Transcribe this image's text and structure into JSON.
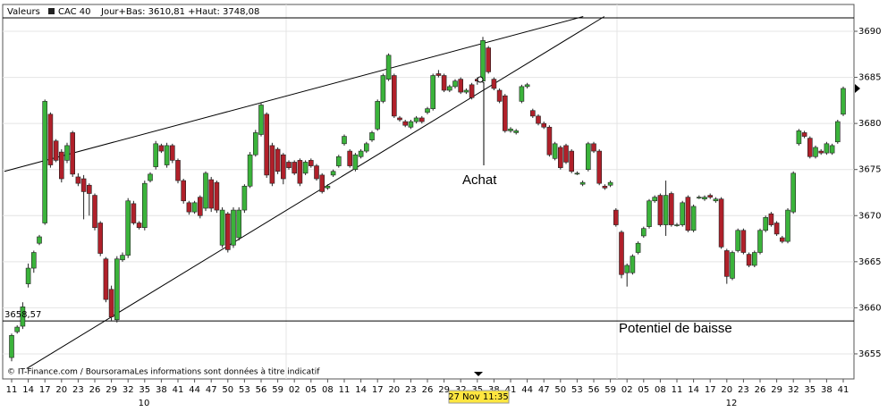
{
  "chart_data": {
    "type": "candlestick",
    "header": [
      "Valeurs",
      "Jour+Bas: 3610,81 +Haut: 3748,08"
    ],
    "up_color": "#3bb33b",
    "down_color": "#b0202a",
    "series": [
      {
        "name": "CAC 40",
        "open": [
          3654.6,
          3657.4,
          3658.0,
          3662.6,
          3664.3,
          3667.0,
          3669.2,
          3681.0,
          3678.1,
          3676.9,
          3676.0,
          3679.0,
          3674.2,
          3674.0,
          3673.3,
          3672.2,
          3669.2,
          3665.3,
          3662.0,
          3658.7,
          3665.2,
          3665.7,
          3671.3,
          3669.2,
          3668.7,
          3673.8,
          3675.3,
          3677.6,
          3675.5,
          3677.6,
          3676.0,
          3673.8,
          3671.4,
          3670.4,
          3672.0,
          3670.8,
          3673.9,
          3673.6,
          3666.8,
          3670.2,
          3666.8,
          3667.6,
          3670.6,
          3673.2,
          3676.6,
          3678.8,
          3681.0,
          3677.6,
          3677.2,
          3676.6,
          3675.8,
          3675.8,
          3676.0,
          3674.6,
          3676.0,
          3675.4,
          3674.4,
          3673.0,
          3674.4,
          3675.4,
          3677.8,
          3677.0,
          3675.0,
          3676.4,
          3677.0,
          3678.2,
          3679.4,
          3682.4,
          3684.8,
          3685.2,
          3680.6,
          3680.2,
          3679.6,
          3680.2,
          3680.6,
          3681.2,
          3681.6,
          3685.4,
          3685.2,
          3683.6,
          3684.0,
          3684.8,
          3683.4,
          3684.2,
          3684.8,
          3684.6,
          3688.2,
          3684.8,
          3683.6,
          3683.0,
          3679.2,
          3679.0,
          3682.4,
          3684.0,
          3681.4,
          3680.8,
          3680.0,
          3679.6,
          3676.2,
          3677.4,
          3677.6,
          3677.0,
          3674.6,
          3673.4,
          3675.0,
          3677.8,
          3677.0,
          3673.2,
          3673.3,
          3670.6,
          3668.2,
          3663.8,
          3663.8,
          3666.0,
          3667.8,
          3668.8,
          3671.6,
          3672.2,
          3669.0,
          3672.4,
          3669.0,
          3669.0,
          3672.0,
          3668.4,
          3672.0,
          3671.8,
          3672.2,
          3671.6,
          3671.8,
          3666.2,
          3663.2,
          3666.2,
          3668.4,
          3665.8,
          3664.6,
          3666.0,
          3668.4,
          3670.2,
          3669.2,
          3667.6,
          3667.2,
          3670.4,
          3677.8,
          3679.0,
          3678.4,
          3676.4,
          3677.0,
          3676.8,
          3676.8,
          3678.0,
          3681.0
        ],
        "high": [
          3657.2,
          3658.1,
          3660.6,
          3664.8,
          3666.2,
          3667.9,
          3682.6,
          3681.2,
          3678.3,
          3677.2,
          3677.9,
          3679.2,
          3674.6,
          3674.4,
          3673.5,
          3672.4,
          3669.4,
          3665.5,
          3662.4,
          3665.6,
          3666.0,
          3671.9,
          3671.6,
          3669.4,
          3673.8,
          3674.7,
          3678.1,
          3677.8,
          3677.9,
          3677.8,
          3676.2,
          3674.0,
          3671.6,
          3671.6,
          3672.2,
          3674.8,
          3674.2,
          3673.8,
          3670.9,
          3670.4,
          3670.9,
          3670.9,
          3673.4,
          3676.9,
          3679.3,
          3682.3,
          3681.2,
          3677.9,
          3677.4,
          3676.8,
          3676.0,
          3676.0,
          3676.2,
          3676.0,
          3676.2,
          3675.6,
          3674.6,
          3673.4,
          3675.0,
          3676.6,
          3678.8,
          3677.2,
          3676.8,
          3677.2,
          3678.0,
          3679.2,
          3682.6,
          3685.4,
          3687.6,
          3685.4,
          3680.8,
          3680.4,
          3680.4,
          3680.8,
          3680.8,
          3681.8,
          3685.4,
          3685.8,
          3685.4,
          3684.2,
          3684.8,
          3685.0,
          3683.8,
          3684.4,
          3685.0,
          3689.4,
          3688.4,
          3685.0,
          3683.8,
          3683.2,
          3679.6,
          3679.4,
          3684.2,
          3684.4,
          3681.6,
          3681.0,
          3680.2,
          3679.8,
          3678.0,
          3677.6,
          3677.8,
          3677.2,
          3674.8,
          3673.8,
          3678.0,
          3678.0,
          3677.2,
          3673.4,
          3673.8,
          3670.8,
          3668.4,
          3664.8,
          3665.8,
          3667.2,
          3668.8,
          3671.8,
          3672.2,
          3672.4,
          3673.8,
          3672.6,
          3669.2,
          3671.6,
          3672.2,
          3671.2,
          3672.2,
          3672.2,
          3672.4,
          3672.0,
          3672.0,
          3666.4,
          3666.2,
          3668.6,
          3668.6,
          3666.0,
          3666.2,
          3668.6,
          3670.0,
          3670.4,
          3669.4,
          3667.8,
          3670.8,
          3674.8,
          3679.4,
          3679.2,
          3678.6,
          3677.6,
          3677.2,
          3678.0,
          3677.8,
          3680.4,
          3684.0
        ],
        "low": [
          3654.2,
          3657.2,
          3657.7,
          3662.2,
          3663.8,
          3666.8,
          3669.0,
          3675.2,
          3675.8,
          3673.6,
          3675.7,
          3674.2,
          3673.2,
          3669.6,
          3670.0,
          3668.4,
          3665.6,
          3660.6,
          3658.6,
          3658.4,
          3665.0,
          3665.4,
          3669.0,
          3668.5,
          3668.4,
          3673.6,
          3675.0,
          3676.8,
          3675.2,
          3675.7,
          3673.5,
          3671.3,
          3670.1,
          3670.2,
          3669.7,
          3670.5,
          3670.4,
          3670.3,
          3666.5,
          3666.0,
          3666.5,
          3667.3,
          3670.3,
          3673.0,
          3676.4,
          3678.6,
          3674.1,
          3673.2,
          3674.5,
          3673.4,
          3675.0,
          3674.4,
          3673.2,
          3674.4,
          3675.2,
          3673.8,
          3672.4,
          3672.8,
          3674.2,
          3675.2,
          3677.6,
          3675.2,
          3674.8,
          3676.2,
          3676.8,
          3678.0,
          3679.2,
          3682.2,
          3684.6,
          3680.6,
          3680.2,
          3679.6,
          3679.4,
          3680.0,
          3680.0,
          3681.0,
          3681.4,
          3685.0,
          3683.4,
          3683.4,
          3683.8,
          3683.2,
          3683.2,
          3682.6,
          3684.2,
          3684.4,
          3685.4,
          3683.6,
          3682.2,
          3679.0,
          3679.0,
          3678.8,
          3682.2,
          3683.8,
          3680.6,
          3679.8,
          3679.4,
          3676.4,
          3676.0,
          3675.0,
          3675.6,
          3674.6,
          3674.4,
          3673.2,
          3674.8,
          3676.8,
          3673.3,
          3672.8,
          3673.1,
          3668.8,
          3663.2,
          3662.3,
          3663.6,
          3665.8,
          3667.6,
          3668.6,
          3671.4,
          3668.8,
          3667.8,
          3668.8,
          3668.8,
          3668.8,
          3668.2,
          3668.2,
          3671.8,
          3671.6,
          3671.8,
          3671.4,
          3666.4,
          3662.6,
          3663.0,
          3666.0,
          3665.8,
          3664.4,
          3664.4,
          3665.8,
          3668.2,
          3668.8,
          3667.8,
          3667.0,
          3667.0,
          3670.2,
          3677.6,
          3678.4,
          3676.2,
          3676.2,
          3676.6,
          3676.6,
          3676.6,
          3677.8,
          3680.8
        ],
        "close": [
          3657.0,
          3657.9,
          3660.1,
          3664.3,
          3666.0,
          3667.7,
          3682.4,
          3675.5,
          3676.0,
          3674.0,
          3677.6,
          3674.5,
          3673.5,
          3672.6,
          3672.4,
          3668.7,
          3665.9,
          3660.9,
          3659.0,
          3665.3,
          3665.7,
          3671.6,
          3669.2,
          3668.7,
          3673.5,
          3674.5,
          3677.8,
          3677.0,
          3677.6,
          3676.0,
          3673.8,
          3671.6,
          3670.4,
          3671.4,
          3670.0,
          3674.6,
          3670.8,
          3670.6,
          3670.6,
          3666.3,
          3670.6,
          3670.6,
          3673.2,
          3676.6,
          3679.0,
          3682.0,
          3674.4,
          3673.5,
          3674.8,
          3674.0,
          3675.2,
          3674.6,
          3673.5,
          3675.8,
          3675.4,
          3674.0,
          3672.6,
          3673.2,
          3674.8,
          3676.4,
          3678.6,
          3675.4,
          3676.6,
          3677.0,
          3677.8,
          3679.0,
          3682.4,
          3685.2,
          3687.4,
          3680.8,
          3680.4,
          3679.8,
          3680.2,
          3680.6,
          3680.2,
          3681.6,
          3685.2,
          3685.2,
          3683.6,
          3684.0,
          3684.6,
          3683.4,
          3683.6,
          3682.8,
          3684.6,
          3689.0,
          3685.6,
          3683.8,
          3682.4,
          3679.2,
          3679.4,
          3679.2,
          3684.0,
          3684.2,
          3680.8,
          3680.0,
          3679.6,
          3676.6,
          3677.8,
          3675.2,
          3675.8,
          3674.8,
          3674.6,
          3673.6,
          3677.8,
          3677.0,
          3673.5,
          3673.0,
          3673.6,
          3669.0,
          3663.6,
          3664.6,
          3665.6,
          3667.0,
          3668.6,
          3671.6,
          3672.0,
          3669.0,
          3672.2,
          3669.0,
          3669.0,
          3671.4,
          3668.4,
          3671.0,
          3672.0,
          3672.0,
          3672.0,
          3671.8,
          3666.6,
          3663.4,
          3666.0,
          3668.4,
          3666.0,
          3664.6,
          3666.0,
          3668.4,
          3669.8,
          3669.0,
          3668.0,
          3667.2,
          3670.6,
          3674.6,
          3679.2,
          3678.6,
          3676.4,
          3677.4,
          3676.8,
          3677.8,
          3677.6,
          3680.2,
          3683.8
        ]
      }
    ],
    "categories": [
      "11",
      null,
      null,
      "14",
      null,
      null,
      "17",
      null,
      null,
      "20",
      null,
      null,
      "23",
      null,
      null,
      "26",
      null,
      null,
      "29",
      null,
      null,
      "32",
      null,
      null,
      "35",
      null,
      null,
      "38",
      null,
      null,
      "41",
      null,
      null,
      "44",
      null,
      null,
      "47",
      null,
      null,
      "50",
      null,
      null,
      "53",
      null,
      null,
      "56",
      null,
      null,
      "59",
      null,
      null,
      "02",
      null,
      null,
      "05",
      null,
      null,
      "08",
      null,
      null,
      "11",
      null,
      null,
      "14",
      null,
      null,
      "17",
      null,
      null,
      "20",
      null,
      null,
      "23",
      null,
      null,
      "26",
      null,
      null,
      "29",
      null,
      null,
      "32",
      null,
      null,
      "35",
      null,
      null,
      "38",
      null,
      null,
      "41",
      null,
      null,
      "44",
      null,
      null,
      "47",
      null,
      null,
      "50",
      null,
      null,
      "53",
      null,
      null,
      "56",
      null,
      null,
      "59",
      null,
      null,
      "02",
      null,
      null,
      "05",
      null,
      null,
      "08",
      null,
      null,
      "11",
      null,
      null,
      "14",
      null,
      null,
      "17",
      null,
      null,
      "20",
      null,
      null,
      "23",
      null,
      null,
      "26",
      null,
      null,
      "29",
      null,
      null,
      "32",
      null,
      null,
      "35",
      null,
      null,
      "38",
      null,
      null,
      "41"
    ],
    "x_group_labels": [
      "10",
      "12"
    ],
    "ylim": [
      3652.28,
      3692.91
    ],
    "yticks": [
      3655,
      3660,
      3665,
      3670,
      3675,
      3680,
      3685,
      3690
    ],
    "grid": true,
    "h_lines": [
      {
        "value": 3658.57,
        "label": "3658,57"
      },
      3691.45
    ],
    "trendlines": [
      {
        "x": [
          -1.3,
          103.1
        ],
        "y": [
          3674.8,
          3691.6
        ]
      },
      {
        "x": [
          2.7,
          106.9
        ],
        "y": [
          3653.4,
          3691.6
        ]
      }
    ],
    "annotations": [
      "Achat",
      "Potentiel de baisse"
    ],
    "cursor_label": "27 Nov 11:35",
    "footer": "© IT-Finance.com / BoursoramaLes informations sont données à titre indicatif"
  }
}
